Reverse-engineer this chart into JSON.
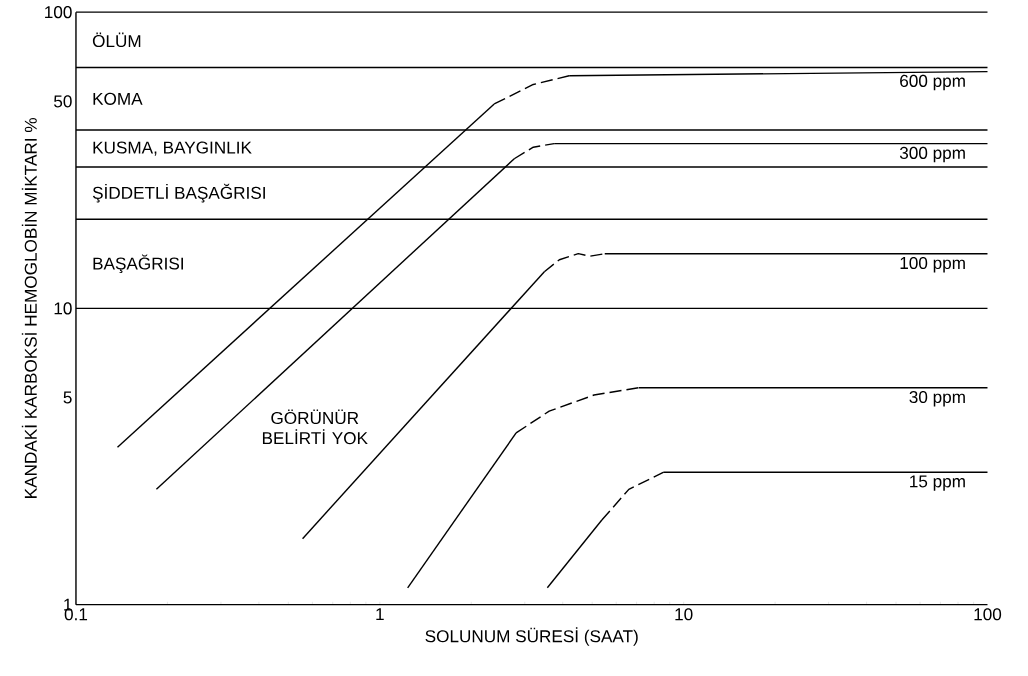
{
  "chart_data": {
    "type": "line",
    "log": "xy",
    "xlabel": "SOLUNUM SÜRESİ (SAAT)",
    "ylabel": "KANDAKİ KARBOKSİ HEMOGLOBİN MİKTARI %",
    "xlim": [
      0.1,
      100
    ],
    "ylim": [
      1,
      100
    ],
    "xticks": [
      0.1,
      1,
      10,
      100
    ],
    "yticks": [
      1,
      5,
      10,
      50,
      100
    ],
    "ref_lines": [
      {
        "axis": "y",
        "value": 65,
        "label": "ÖLÜM"
      },
      {
        "axis": "y",
        "value": 40,
        "label": "KOMA"
      },
      {
        "axis": "y",
        "value": 30,
        "label": "KUSMA, BAYGINLIK"
      },
      {
        "axis": "y",
        "value": 20,
        "label": "ŞİDDETLİ BAŞAĞRISI"
      },
      {
        "axis": "y",
        "value": 10,
        "label": "BAŞAĞRISI"
      }
    ],
    "annotations": [
      "GÖRÜNÜR BELİRTİ YOK"
    ],
    "series": [
      {
        "color": "#000000",
        "line_style": "solid",
        "x": [
          0.137,
          2.38
        ],
        "values": [
          3.4,
          49
        ]
      },
      {
        "color": "#000000",
        "line_style": "dashed",
        "x": [
          2.38,
          3.2,
          4.2
        ],
        "values": [
          49,
          57,
          61
        ]
      },
      {
        "name": "600 ppm",
        "color": "#000000",
        "line_style": "solid",
        "x": [
          4.2,
          100
        ],
        "values": [
          61,
          63
        ]
      },
      {
        "color": "#000000",
        "line_style": "solid",
        "x": [
          0.184,
          2.77
        ],
        "values": [
          2.45,
          32
        ]
      },
      {
        "color": "#000000",
        "line_style": "dashed",
        "x": [
          2.77,
          3.2,
          3.75
        ],
        "values": [
          32,
          35,
          36
        ]
      },
      {
        "name": "300 ppm",
        "color": "#000000",
        "line_style": "solid",
        "x": [
          3.75,
          100
        ],
        "values": [
          36,
          36
        ]
      },
      {
        "color": "#000000",
        "line_style": "solid",
        "x": [
          0.557,
          3.48
        ],
        "values": [
          1.67,
          13.3
        ]
      },
      {
        "color": "#000000",
        "line_style": "dashed",
        "x": [
          3.48,
          3.9,
          4.5,
          4.9,
          5.5
        ],
        "values": [
          13.3,
          14.6,
          15.3,
          15,
          15.3
        ]
      },
      {
        "name": "100 ppm",
        "color": "#000000",
        "line_style": "solid",
        "x": [
          5.5,
          100
        ],
        "values": [
          15.3,
          15.3
        ]
      },
      {
        "color": "#000000",
        "line_style": "solid",
        "x": [
          1.235,
          2.81
        ],
        "values": [
          1.14,
          3.8
        ]
      },
      {
        "color": "#000000",
        "line_style": "dashed",
        "x": [
          2.81,
          3.61,
          5.07,
          7.12
        ],
        "values": [
          3.8,
          4.5,
          5.1,
          5.4
        ]
      },
      {
        "name": "30 ppm",
        "color": "#000000",
        "line_style": "solid",
        "x": [
          7.12,
          100
        ],
        "values": [
          5.4,
          5.4
        ]
      },
      {
        "color": "#000000",
        "line_style": "solid",
        "x": [
          3.56,
          5.38
        ],
        "values": [
          1.14,
          1.93
        ]
      },
      {
        "color": "#000000",
        "line_style": "dashed",
        "x": [
          5.38,
          6.6,
          8.6
        ],
        "values": [
          1.93,
          2.45,
          2.8
        ]
      },
      {
        "name": "15 ppm",
        "color": "#000000",
        "line_style": "solid",
        "x": [
          8.6,
          100
        ],
        "values": [
          2.8,
          2.8
        ]
      }
    ]
  }
}
